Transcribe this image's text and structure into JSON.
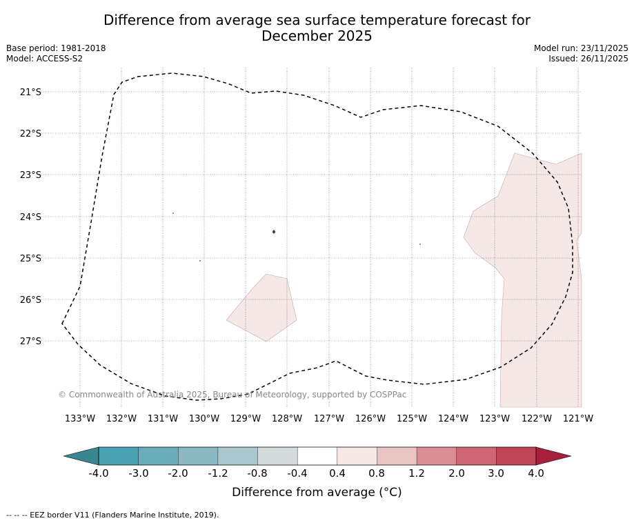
{
  "title": {
    "line1": "Difference from average sea surface temperature forecast for",
    "line2": "December 2025"
  },
  "meta": {
    "base_period": "Base period: 1981-2018",
    "model": "Model: ACCESS-S2",
    "model_run": "Model run: 23/11/2025",
    "issued": "Issued: 26/11/2025"
  },
  "map": {
    "lat_labels": [
      "21°S",
      "22°S",
      "23°S",
      "24°S",
      "25°S",
      "26°S",
      "27°S"
    ],
    "lon_labels": [
      "133°W",
      "132°W",
      "131°W",
      "130°W",
      "129°W",
      "128°W",
      "127°W",
      "126°W",
      "125°W",
      "124°W",
      "123°W",
      "122°W",
      "121°W"
    ],
    "copyright": "© Commonwealth of Australia 2025, Bureau of Meteorology, supported by COSPPac"
  },
  "colorbar": {
    "ticks": [
      "-4.0",
      "-3.0",
      "-2.0",
      "-1.2",
      "-0.8",
      "-0.4",
      "0.4",
      "0.8",
      "1.2",
      "2.0",
      "3.0",
      "4.0"
    ],
    "colors": [
      "#4aa1b1",
      "#6aadba",
      "#8cb8c3",
      "#a9c7cc",
      "#d5dadb",
      "#ffffff",
      "#f5e8e7",
      "#e8c4c3",
      "#d98d95",
      "#cb6672",
      "#c04557"
    ],
    "low_extend_color": "#3a8592",
    "high_extend_color": "#a9203a",
    "title": "Difference from average (°C)"
  },
  "legend": {
    "eez": "--  --  -- EEZ border V11 (Flanders Marine Institute, 2019)."
  },
  "colors": {
    "anomaly_fill": "#f5e8e7",
    "grid": "#666666"
  }
}
